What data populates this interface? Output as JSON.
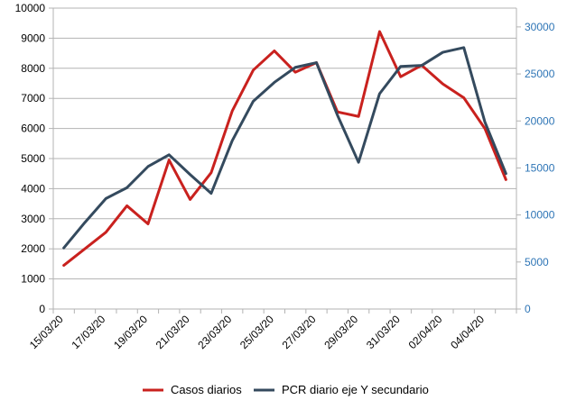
{
  "chart_data": {
    "type": "line",
    "x": [
      "15/03/20",
      "16/03/20",
      "17/03/20",
      "18/03/20",
      "19/03/20",
      "20/03/20",
      "21/03/20",
      "22/03/20",
      "23/03/20",
      "24/03/20",
      "25/03/20",
      "26/03/20",
      "27/03/20",
      "28/03/20",
      "29/03/20",
      "30/03/20",
      "31/03/20",
      "01/04/20",
      "02/04/20",
      "03/04/20",
      "04/04/20",
      "05/04/20"
    ],
    "x_tick_labels": [
      "15/03/20",
      "17/03/20",
      "19/03/20",
      "21/03/20",
      "23/03/20",
      "25/03/20",
      "27/03/20",
      "29/03/20",
      "31/03/20",
      "02/04/20",
      "04/04/20"
    ],
    "y_left": {
      "ticks": [
        0,
        1000,
        2000,
        3000,
        4000,
        5000,
        6000,
        7000,
        8000,
        9000,
        10000
      ],
      "range": [
        0,
        10000
      ]
    },
    "y_right": {
      "ticks": [
        0,
        5000,
        10000,
        15000,
        20000,
        25000,
        30000
      ],
      "range": [
        0,
        32000
      ]
    },
    "grid": "horizontal",
    "legend_position": "bottom",
    "series": [
      {
        "name": "Casos diarios",
        "axis": "left",
        "color": "#c9211e",
        "values": [
          1450,
          2000,
          2550,
          3430,
          2830,
          4950,
          3640,
          4530,
          6580,
          7940,
          8580,
          7870,
          8190,
          6550,
          6400,
          9220,
          7720,
          8100,
          7480,
          7020,
          6000,
          4300
        ]
      },
      {
        "name": "PCR diario eje Y secundario",
        "axis": "right",
        "color": "#344a5e",
        "values": [
          6500,
          9200,
          11750,
          12900,
          15150,
          16400,
          14300,
          12300,
          17900,
          22100,
          24100,
          25700,
          26200,
          20600,
          15600,
          22900,
          25800,
          25900,
          27300,
          27800,
          19900,
          14400
        ]
      }
    ]
  }
}
